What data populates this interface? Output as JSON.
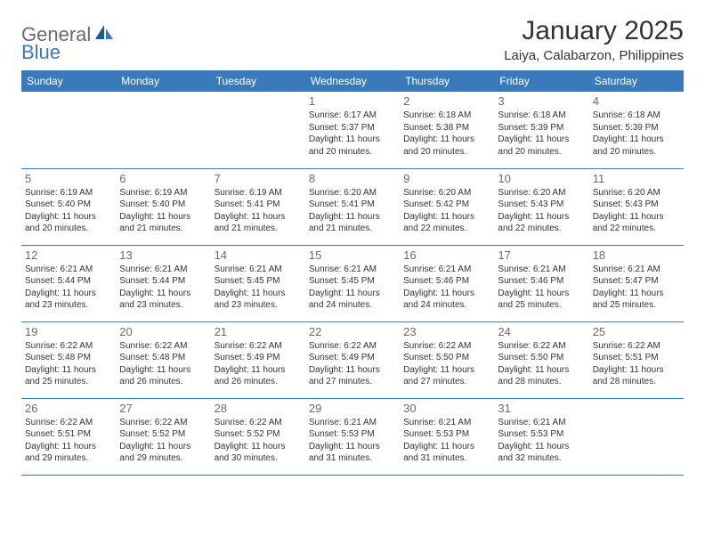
{
  "logo": {
    "text1": "General",
    "text2": "Blue"
  },
  "title": "January 2025",
  "location": "Laiya, Calabarzon, Philippines",
  "colors": {
    "header_bg": "#3a7ab8",
    "header_text": "#ffffff",
    "border": "#3a7ab8",
    "daynum": "#6b6b6b",
    "body_text": "#333333",
    "logo_gray": "#6b6b6b",
    "logo_blue": "#3a7ab8",
    "background": "#ffffff"
  },
  "fonts": {
    "title_size": 30,
    "location_size": 15,
    "header_size": 12,
    "daynum_size": 13,
    "detail_size": 10
  },
  "weekdays": [
    "Sunday",
    "Monday",
    "Tuesday",
    "Wednesday",
    "Thursday",
    "Friday",
    "Saturday"
  ],
  "weeks": [
    [
      null,
      null,
      null,
      {
        "n": "1",
        "sr": "Sunrise: 6:17 AM",
        "ss": "Sunset: 5:37 PM",
        "d1": "Daylight: 11 hours",
        "d2": "and 20 minutes."
      },
      {
        "n": "2",
        "sr": "Sunrise: 6:18 AM",
        "ss": "Sunset: 5:38 PM",
        "d1": "Daylight: 11 hours",
        "d2": "and 20 minutes."
      },
      {
        "n": "3",
        "sr": "Sunrise: 6:18 AM",
        "ss": "Sunset: 5:39 PM",
        "d1": "Daylight: 11 hours",
        "d2": "and 20 minutes."
      },
      {
        "n": "4",
        "sr": "Sunrise: 6:18 AM",
        "ss": "Sunset: 5:39 PM",
        "d1": "Daylight: 11 hours",
        "d2": "and 20 minutes."
      }
    ],
    [
      {
        "n": "5",
        "sr": "Sunrise: 6:19 AM",
        "ss": "Sunset: 5:40 PM",
        "d1": "Daylight: 11 hours",
        "d2": "and 20 minutes."
      },
      {
        "n": "6",
        "sr": "Sunrise: 6:19 AM",
        "ss": "Sunset: 5:40 PM",
        "d1": "Daylight: 11 hours",
        "d2": "and 21 minutes."
      },
      {
        "n": "7",
        "sr": "Sunrise: 6:19 AM",
        "ss": "Sunset: 5:41 PM",
        "d1": "Daylight: 11 hours",
        "d2": "and 21 minutes."
      },
      {
        "n": "8",
        "sr": "Sunrise: 6:20 AM",
        "ss": "Sunset: 5:41 PM",
        "d1": "Daylight: 11 hours",
        "d2": "and 21 minutes."
      },
      {
        "n": "9",
        "sr": "Sunrise: 6:20 AM",
        "ss": "Sunset: 5:42 PM",
        "d1": "Daylight: 11 hours",
        "d2": "and 22 minutes."
      },
      {
        "n": "10",
        "sr": "Sunrise: 6:20 AM",
        "ss": "Sunset: 5:43 PM",
        "d1": "Daylight: 11 hours",
        "d2": "and 22 minutes."
      },
      {
        "n": "11",
        "sr": "Sunrise: 6:20 AM",
        "ss": "Sunset: 5:43 PM",
        "d1": "Daylight: 11 hours",
        "d2": "and 22 minutes."
      }
    ],
    [
      {
        "n": "12",
        "sr": "Sunrise: 6:21 AM",
        "ss": "Sunset: 5:44 PM",
        "d1": "Daylight: 11 hours",
        "d2": "and 23 minutes."
      },
      {
        "n": "13",
        "sr": "Sunrise: 6:21 AM",
        "ss": "Sunset: 5:44 PM",
        "d1": "Daylight: 11 hours",
        "d2": "and 23 minutes."
      },
      {
        "n": "14",
        "sr": "Sunrise: 6:21 AM",
        "ss": "Sunset: 5:45 PM",
        "d1": "Daylight: 11 hours",
        "d2": "and 23 minutes."
      },
      {
        "n": "15",
        "sr": "Sunrise: 6:21 AM",
        "ss": "Sunset: 5:45 PM",
        "d1": "Daylight: 11 hours",
        "d2": "and 24 minutes."
      },
      {
        "n": "16",
        "sr": "Sunrise: 6:21 AM",
        "ss": "Sunset: 5:46 PM",
        "d1": "Daylight: 11 hours",
        "d2": "and 24 minutes."
      },
      {
        "n": "17",
        "sr": "Sunrise: 6:21 AM",
        "ss": "Sunset: 5:46 PM",
        "d1": "Daylight: 11 hours",
        "d2": "and 25 minutes."
      },
      {
        "n": "18",
        "sr": "Sunrise: 6:21 AM",
        "ss": "Sunset: 5:47 PM",
        "d1": "Daylight: 11 hours",
        "d2": "and 25 minutes."
      }
    ],
    [
      {
        "n": "19",
        "sr": "Sunrise: 6:22 AM",
        "ss": "Sunset: 5:48 PM",
        "d1": "Daylight: 11 hours",
        "d2": "and 25 minutes."
      },
      {
        "n": "20",
        "sr": "Sunrise: 6:22 AM",
        "ss": "Sunset: 5:48 PM",
        "d1": "Daylight: 11 hours",
        "d2": "and 26 minutes."
      },
      {
        "n": "21",
        "sr": "Sunrise: 6:22 AM",
        "ss": "Sunset: 5:49 PM",
        "d1": "Daylight: 11 hours",
        "d2": "and 26 minutes."
      },
      {
        "n": "22",
        "sr": "Sunrise: 6:22 AM",
        "ss": "Sunset: 5:49 PM",
        "d1": "Daylight: 11 hours",
        "d2": "and 27 minutes."
      },
      {
        "n": "23",
        "sr": "Sunrise: 6:22 AM",
        "ss": "Sunset: 5:50 PM",
        "d1": "Daylight: 11 hours",
        "d2": "and 27 minutes."
      },
      {
        "n": "24",
        "sr": "Sunrise: 6:22 AM",
        "ss": "Sunset: 5:50 PM",
        "d1": "Daylight: 11 hours",
        "d2": "and 28 minutes."
      },
      {
        "n": "25",
        "sr": "Sunrise: 6:22 AM",
        "ss": "Sunset: 5:51 PM",
        "d1": "Daylight: 11 hours",
        "d2": "and 28 minutes."
      }
    ],
    [
      {
        "n": "26",
        "sr": "Sunrise: 6:22 AM",
        "ss": "Sunset: 5:51 PM",
        "d1": "Daylight: 11 hours",
        "d2": "and 29 minutes."
      },
      {
        "n": "27",
        "sr": "Sunrise: 6:22 AM",
        "ss": "Sunset: 5:52 PM",
        "d1": "Daylight: 11 hours",
        "d2": "and 29 minutes."
      },
      {
        "n": "28",
        "sr": "Sunrise: 6:22 AM",
        "ss": "Sunset: 5:52 PM",
        "d1": "Daylight: 11 hours",
        "d2": "and 30 minutes."
      },
      {
        "n": "29",
        "sr": "Sunrise: 6:21 AM",
        "ss": "Sunset: 5:53 PM",
        "d1": "Daylight: 11 hours",
        "d2": "and 31 minutes."
      },
      {
        "n": "30",
        "sr": "Sunrise: 6:21 AM",
        "ss": "Sunset: 5:53 PM",
        "d1": "Daylight: 11 hours",
        "d2": "and 31 minutes."
      },
      {
        "n": "31",
        "sr": "Sunrise: 6:21 AM",
        "ss": "Sunset: 5:53 PM",
        "d1": "Daylight: 11 hours",
        "d2": "and 32 minutes."
      },
      null
    ]
  ]
}
